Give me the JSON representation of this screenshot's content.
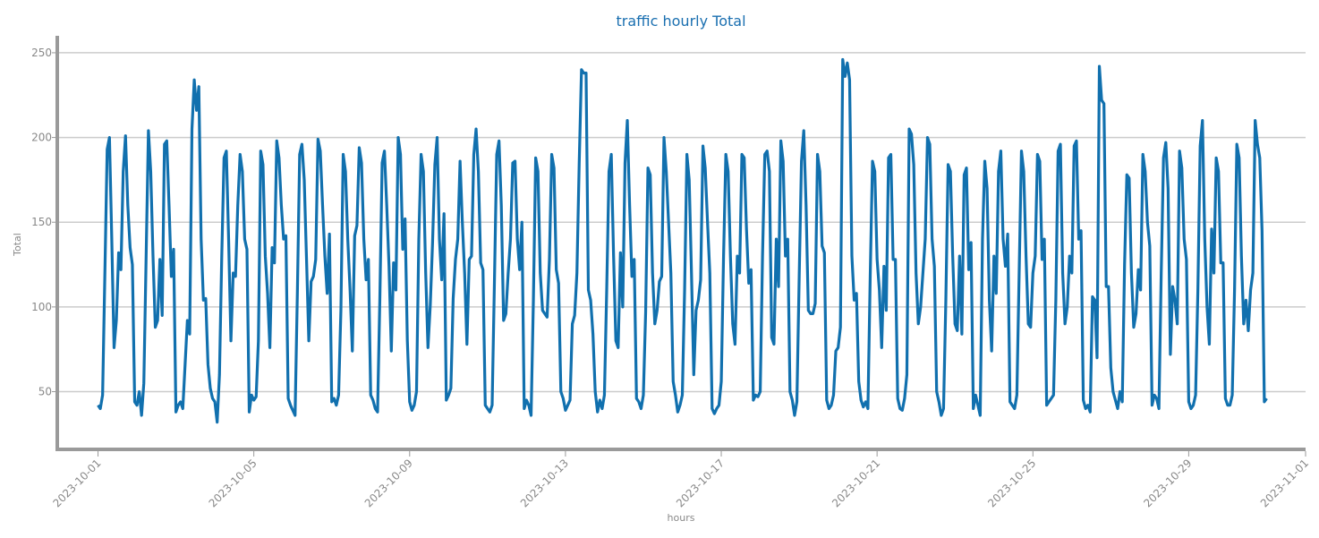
{
  "chart_data": {
    "type": "line",
    "title": "traffic hourly Total",
    "xlabel": "hours",
    "ylabel": "Total",
    "x_start": "2023-10-01",
    "x_end": "2023-10-31",
    "xlim": [
      "2023-09-30",
      "2023-11-01"
    ],
    "ylim": [
      17,
      260
    ],
    "grid": "horizontal",
    "line_color": "#1170ae",
    "x_tick_labels": [
      "2023-10-01",
      "2023-10-05",
      "2023-10-09",
      "2023-10-13",
      "2023-10-17",
      "2023-10-21",
      "2023-10-25",
      "2023-10-29",
      "2023-11-01"
    ],
    "y_tick_labels": [
      "50",
      "100",
      "150",
      "200",
      "250"
    ],
    "y_ticks": [
      50,
      100,
      150,
      200,
      250
    ],
    "series": [
      {
        "name": "",
        "values": [
          42,
          40,
          48,
          120,
          193,
          200,
          140,
          76,
          92,
          132,
          122,
          180,
          201,
          160,
          135,
          125,
          44,
          42,
          50,
          36,
          55,
          130,
          204,
          180,
          130,
          88,
          92,
          128,
          95,
          196,
          198,
          160,
          118,
          134,
          38,
          42,
          44,
          40,
          66,
          92,
          84,
          205,
          234,
          216,
          230,
          140,
          104,
          105,
          66,
          52,
          46,
          44,
          32,
          60,
          130,
          188,
          192,
          140,
          80,
          120,
          118,
          160,
          190,
          180,
          140,
          134,
          38,
          48,
          45,
          47,
          80,
          192,
          184,
          130,
          108,
          76,
          135,
          126,
          198,
          188,
          160,
          140,
          142,
          46,
          42,
          39,
          36,
          108,
          190,
          196,
          175,
          128,
          80,
          115,
          118,
          128,
          199,
          192,
          160,
          130,
          108,
          143,
          44,
          46,
          42,
          48,
          98,
          190,
          180,
          140,
          110,
          74,
          142,
          148,
          194,
          185,
          140,
          116,
          128,
          48,
          45,
          40,
          38,
          105,
          185,
          192,
          160,
          124,
          74,
          126,
          110,
          200,
          190,
          134,
          152,
          80,
          44,
          39,
          42,
          50,
          140,
          190,
          180,
          120,
          76,
          101,
          138,
          184,
          200,
          140,
          116,
          155,
          45,
          48,
          52,
          105,
          128,
          140,
          186,
          150,
          120,
          78,
          128,
          130,
          190,
          205,
          180,
          126,
          122,
          42,
          40,
          38,
          42,
          115,
          190,
          198,
          160,
          92,
          96,
          120,
          140,
          185,
          186,
          140,
          122,
          150,
          40,
          45,
          42,
          36,
          104,
          188,
          180,
          120,
          98,
          96,
          94,
          128,
          190,
          182,
          122,
          114,
          50,
          46,
          39,
          42,
          45,
          90,
          95,
          120,
          185,
          240,
          238,
          238,
          110,
          104,
          84,
          50,
          38,
          45,
          40,
          48,
          110,
          180,
          190,
          130,
          80,
          76,
          132,
          100,
          185,
          210,
          160,
          118,
          128,
          46,
          44,
          40,
          48,
          97,
          182,
          178,
          120,
          90,
          98,
          115,
          118,
          200,
          180,
          150,
          120,
          56,
          48,
          38,
          42,
          48,
          110,
          190,
          175,
          120,
          60,
          98,
          104,
          116,
          195,
          182,
          150,
          120,
          40,
          37,
          40,
          42,
          56,
          130,
          190,
          180,
          130,
          90,
          78,
          130,
          120,
          190,
          188,
          146,
          114,
          122,
          45,
          48,
          47,
          50,
          130,
          190,
          192,
          180,
          82,
          78,
          140,
          112,
          198,
          186,
          130,
          140,
          50,
          45,
          36,
          44,
          117,
          186,
          204,
          160,
          98,
          96,
          96,
          102,
          190,
          180,
          136,
          132,
          45,
          40,
          42,
          48,
          74,
          76,
          88,
          246,
          236,
          244,
          234,
          130,
          104,
          108,
          56,
          45,
          41,
          44,
          40,
          118,
          186,
          180,
          128,
          110,
          76,
          124,
          98,
          188,
          190,
          128,
          128,
          46,
          40,
          39,
          46,
          60,
          205,
          202,
          184,
          120,
          90,
          100,
          120,
          140,
          200,
          196,
          140,
          124,
          50,
          44,
          36,
          40,
          104,
          184,
          180,
          130,
          90,
          86,
          130,
          84,
          178,
          182,
          122,
          138,
          40,
          48,
          42,
          36,
          140,
          186,
          170,
          104,
          74,
          130,
          108,
          180,
          192,
          140,
          124,
          143,
          44,
          42,
          40,
          48,
          120,
          192,
          180,
          130,
          90,
          88,
          120,
          130,
          190,
          186,
          128,
          140,
          42,
          44,
          46,
          48,
          104,
          192,
          196,
          120,
          90,
          100,
          130,
          120,
          195,
          198,
          140,
          145,
          45,
          40,
          42,
          38,
          106,
          104,
          70,
          242,
          222,
          220,
          112,
          112,
          64,
          50,
          45,
          40,
          50,
          44,
          125,
          178,
          176,
          120,
          88,
          96,
          122,
          110,
          190,
          180,
          150,
          136,
          42,
          48,
          46,
          40,
          120,
          188,
          197,
          170,
          72,
          112,
          104,
          90,
          192,
          182,
          140,
          128,
          44,
          40,
          42,
          48,
          110,
          195,
          210,
          140,
          100,
          78,
          146,
          120,
          188,
          180,
          126,
          126,
          46,
          42,
          42,
          48,
          110,
          196,
          188,
          130,
          90,
          104,
          86,
          110,
          120,
          210,
          196,
          188,
          145,
          44,
          46
        ]
      }
    ]
  }
}
